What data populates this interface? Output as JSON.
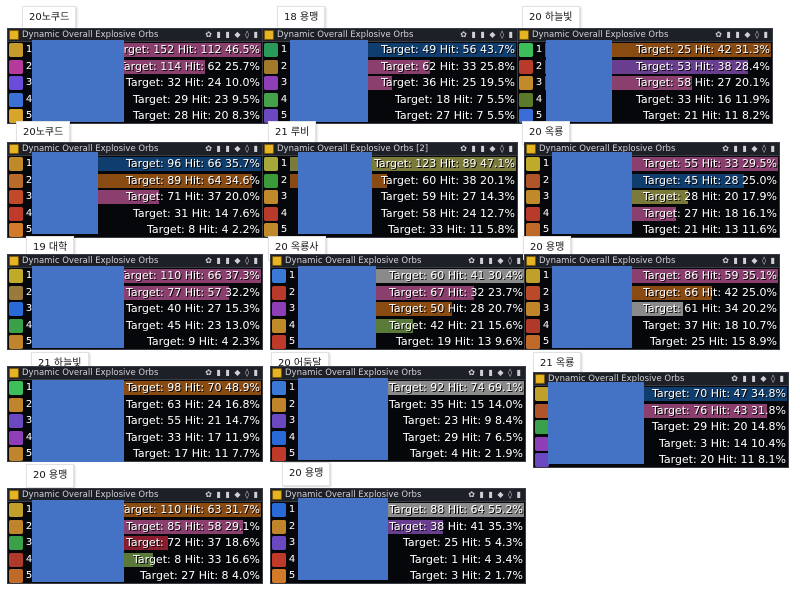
{
  "panels": [
    {
      "label": "20노쿠드",
      "title": "Dynamic Overall Explosive Orbs",
      "tools": "✿ ▮ ▮ ◆ ◊ ▮",
      "rows": [
        {
          "rank": "1",
          "text": "Target: 152 Hit: 112 46.5%",
          "color": "#8a3f6e",
          "fill": 1.0,
          "icon": "#c59a2a"
        },
        {
          "rank": "2",
          "text": "Target: 114 Hit: 62 25.7%",
          "color": "#8a3f6e",
          "fill": 0.75,
          "icon": "#b63a9b"
        },
        {
          "rank": "3",
          "text": "Target: 32 Hit: 24 10.0%",
          "color": "#0a0a10",
          "fill": 0.0,
          "icon": "#6b4bd9"
        },
        {
          "rank": "4",
          "text": "Target: 29 Hit: 23 9.5%",
          "color": "#0a0a10",
          "fill": 0.0,
          "icon": "#3b70d6"
        },
        {
          "rank": "5",
          "text": "Target: 28 Hit: 20 8.3%",
          "color": "#0a0a10",
          "fill": 0.0,
          "icon": "#d8a52a"
        }
      ]
    },
    {
      "label": "18 용맹",
      "title": "Dynamic Overall Explosive Orbs",
      "tools": "✿ ▮ ▮ ◆ ◊ ▮",
      "rows": [
        {
          "rank": "1",
          "text": "Target: 49 Hit: 56 43.7%",
          "color": "#0f3d6e",
          "fill": 1.0,
          "icon": "#2a9a5a"
        },
        {
          "rank": "2",
          "text": "Target: 62 Hit: 33 25.8%",
          "color": "#8a3f6e",
          "fill": 0.62,
          "icon": "#a27a2a"
        },
        {
          "rank": "3",
          "text": "Target: 36 Hit: 25 19.5%",
          "color": "#8a3f6e",
          "fill": 0.45,
          "icon": "#8e3fb8"
        },
        {
          "rank": "4",
          "text": "Target: 18 Hit: 7 5.5%",
          "color": "#0a0a10",
          "fill": 0.0,
          "icon": "#45a04a"
        },
        {
          "rank": "5",
          "text": "Target: 27 Hit: 7 5.5%",
          "color": "#0a0a10",
          "fill": 0.0,
          "icon": "#6a48c0"
        }
      ]
    },
    {
      "label": "20 하늘빛",
      "title": "Dynamic Overall Explosive Orbs",
      "tools": "✿ ▮ ▮ ◆ ◊ ▮",
      "rows": [
        {
          "rank": "1",
          "text": "Target: 25 Hit: 42 31.3%",
          "color": "#8a4b12",
          "fill": 1.0,
          "icon": "#3cbf5a"
        },
        {
          "rank": "2",
          "text": "Target: 53 Hit: 38 28.4%",
          "color": "#6a3e8e",
          "fill": 0.9,
          "icon": "#b83a2a"
        },
        {
          "rank": "3",
          "text": "Target: 58 Hit: 27 20.1%",
          "color": "#8a3f6e",
          "fill": 0.65,
          "icon": "#c28a2a"
        },
        {
          "rank": "4",
          "text": "Target: 33 Hit: 16 11.9%",
          "color": "#0a0a10",
          "fill": 0.0,
          "icon": "#5a7a2a"
        },
        {
          "rank": "5",
          "text": "Target: 21 Hit: 11 8.2%",
          "color": "#0a0a10",
          "fill": 0.0,
          "icon": "#3b6bd6"
        }
      ]
    },
    {
      "label": "20노쿠드",
      "title": "Dynamic Overall Explosive Orbs",
      "tools": "✿ ▮ ▮ ◆ ◊ ▮",
      "rows": [
        {
          "rank": "1",
          "text": "Target: 96 Hit: 66 35.7%",
          "color": "#0f3d6e",
          "fill": 1.0,
          "icon": "#c08a2a"
        },
        {
          "rank": "2",
          "text": "Target: 89 Hit: 64 34.6%",
          "color": "#8a4b12",
          "fill": 0.96,
          "icon": "#b86a2a"
        },
        {
          "rank": "3",
          "text": "Target: 71 Hit: 37 20.0%",
          "color": "#8a3f6e",
          "fill": 0.55,
          "icon": "#c04a2a"
        },
        {
          "rank": "4",
          "text": "Target: 31 Hit: 14 7.6%",
          "color": "#0a0a10",
          "fill": 0.0,
          "icon": "#c03a2a"
        },
        {
          "rank": "5",
          "text": "Target: 8 Hit: 4 2.2%",
          "color": "#0a0a10",
          "fill": 0.0,
          "icon": "#d07a2a"
        }
      ]
    },
    {
      "label": "21 루비",
      "title": "Dynamic Overall Explosive Orbs [2]",
      "tools": "✿ ▮ ▮ ◆ ◊ ▮",
      "rows": [
        {
          "rank": "1",
          "text": "Target: 123 Hit: 89 47.1%",
          "color": "#7a7a3a",
          "fill": 1.0,
          "icon": "#a8a83a"
        },
        {
          "rank": "2",
          "text": "Target: 60 Hit: 38 20.1%",
          "color": "#8a4b12",
          "fill": 0.43,
          "icon": "#3a9a3a"
        },
        {
          "rank": "3",
          "text": "Target: 59 Hit: 27 14.3%",
          "color": "#0a0a10",
          "fill": 0.0,
          "icon": "#c08a2a"
        },
        {
          "rank": "4",
          "text": "Target: 58 Hit: 24 12.7%",
          "color": "#0a0a10",
          "fill": 0.0,
          "icon": "#b83a2a"
        },
        {
          "rank": "5",
          "text": "Target: 33 Hit: 11 5.8%",
          "color": "#0a0a10",
          "fill": 0.0,
          "icon": "#c08a2a"
        }
      ]
    },
    {
      "label": "20 옥룡",
      "title": "Dynamic Overall Explosive Orbs",
      "tools": "✿ ▮ ▮ ◆ ◊ ▮",
      "rows": [
        {
          "rank": "1",
          "text": "Target: 55 Hit: 33 29.5%",
          "color": "#8a3f6e",
          "fill": 1.0,
          "icon": "#c0aa2a"
        },
        {
          "rank": "2",
          "text": "Target: 45 Hit: 28 25.0%",
          "color": "#0f3d6e",
          "fill": 0.85,
          "icon": "#b0542a"
        },
        {
          "rank": "3",
          "text": "Target: 28 Hit: 20 17.9%",
          "color": "#7a7a3a",
          "fill": 0.6,
          "icon": "#c08a2a"
        },
        {
          "rank": "4",
          "text": "Target: 27 Hit: 18 16.1%",
          "color": "#8a3f6e",
          "fill": 0.55,
          "icon": "#b83a2a"
        },
        {
          "rank": "5",
          "text": "Target: 21 Hit: 13 11.6%",
          "color": "#0a0a10",
          "fill": 0.0,
          "icon": "#c06a2a"
        }
      ]
    },
    {
      "label": "19 대학",
      "title": "Dynamic Overall Explosive Orbs",
      "tools": "✿ ▮ ▮ ◆ ◊ ▮",
      "rows": [
        {
          "rank": "1",
          "text": "Target: 110 Hit: 66 37.3%",
          "color": "#8a3f6e",
          "fill": 1.0,
          "icon": "#c0aa2a"
        },
        {
          "rank": "2",
          "text": "Target: 77 Hit: 57 32.2%",
          "color": "#8a3f6e",
          "fill": 0.86,
          "icon": "#9a7a3a"
        },
        {
          "rank": "3",
          "text": "Target: 40 Hit: 27 15.3%",
          "color": "#0a0a10",
          "fill": 0.0,
          "icon": "#2a6ad6"
        },
        {
          "rank": "4",
          "text": "Target: 45 Hit: 23 13.0%",
          "color": "#0a0a10",
          "fill": 0.0,
          "icon": "#3aa04a"
        },
        {
          "rank": "5",
          "text": "Target: 9 Hit: 4 2.3%",
          "color": "#0a0a10",
          "fill": 0.0,
          "icon": "#c0842a"
        }
      ]
    },
    {
      "label": "20 옥룡사",
      "title": "Dynamic Overall Explosive Orbs",
      "tools": "✿ ▮ ▮ ◆ ◊ ▮",
      "rows": [
        {
          "rank": "1",
          "text": "Target: 60 Hit: 41 30.4%",
          "color": "#8a8a8a",
          "fill": 1.0,
          "icon": "#3a7ad6"
        },
        {
          "rank": "2",
          "text": "Target: 67 Hit: 32 23.7%",
          "color": "#8a3f6e",
          "fill": 0.78,
          "icon": "#b83a2a"
        },
        {
          "rank": "3",
          "text": "Target: 50 Hit: 28 20.7%",
          "color": "#8a4b12",
          "fill": 0.68,
          "icon": "#8e3fb8"
        },
        {
          "rank": "4",
          "text": "Target: 42 Hit: 21 15.6%",
          "color": "#5a7a3a",
          "fill": 0.51,
          "icon": "#c08a2a"
        },
        {
          "rank": "5",
          "text": "Target: 19 Hit: 13 9.6%",
          "color": "#0a0a10",
          "fill": 0.0,
          "icon": "#c03a2a"
        }
      ]
    },
    {
      "label": "20 용맹",
      "title": "Dynamic Overall Explosive Orbs",
      "tools": "✿ ▮ ▮ ◆ ◊ ▮",
      "rows": [
        {
          "rank": "1",
          "text": "Target: 86 Hit: 59 35.1%",
          "color": "#8a3f6e",
          "fill": 1.0,
          "icon": "#c0a02a"
        },
        {
          "rank": "2",
          "text": "Target: 66 Hit: 42 25.0%",
          "color": "#8a4b12",
          "fill": 0.71,
          "icon": "#b84a2a"
        },
        {
          "rank": "3",
          "text": "Target: 61 Hit: 34 20.2%",
          "color": "#8a8a8a",
          "fill": 0.58,
          "icon": "#c0842a"
        },
        {
          "rank": "4",
          "text": "Target: 37 Hit: 18 10.7%",
          "color": "#0a0a10",
          "fill": 0.0,
          "icon": "#b03a2a"
        },
        {
          "rank": "5",
          "text": "Target: 25 Hit: 15 8.9%",
          "color": "#0a0a10",
          "fill": 0.0,
          "icon": "#c06a2a"
        }
      ]
    },
    {
      "label": "21 하늘빛",
      "title": "Dynamic Overall Explosive Orbs",
      "tools": "✿ ▮ ▮ ◆ ◊ ▮",
      "rows": [
        {
          "rank": "1",
          "text": "Target: 98 Hit: 70 48.9%",
          "color": "#8a4b12",
          "fill": 1.0,
          "icon": "#3cbf5a"
        },
        {
          "rank": "2",
          "text": "Target: 63 Hit: 24 16.8%",
          "color": "#0a0a10",
          "fill": 0.0,
          "icon": "#c0842a"
        },
        {
          "rank": "3",
          "text": "Target: 55 Hit: 21 14.7%",
          "color": "#0a0a10",
          "fill": 0.0,
          "icon": "#6a48c0"
        },
        {
          "rank": "4",
          "text": "Target: 33 Hit: 17 11.9%",
          "color": "#0a0a10",
          "fill": 0.0,
          "icon": "#8e3fb8"
        },
        {
          "rank": "5",
          "text": "Target: 17 Hit: 11 7.7%",
          "color": "#0a0a10",
          "fill": 0.0,
          "icon": "#c0842a"
        }
      ]
    },
    {
      "label": "20 어둠달",
      "title": "Dynamic Overall Explosive Orbs",
      "tools": "✿ ▮ ▮ ◆ ◊ ▮",
      "rows": [
        {
          "rank": "1",
          "text": "Target: 92 Hit: 74 69.1%",
          "color": "#8a8a8a",
          "fill": 1.0,
          "icon": "#3a7ad6"
        },
        {
          "rank": "2",
          "text": "Target: 35 Hit: 15 14.0%",
          "color": "#0a0a10",
          "fill": 0.0,
          "icon": "#c0842a"
        },
        {
          "rank": "3",
          "text": "Target: 23 Hit: 9 8.4%",
          "color": "#0a0a10",
          "fill": 0.0,
          "icon": "#6a48c0"
        },
        {
          "rank": "4",
          "text": "Target: 29 Hit: 7 6.5%",
          "color": "#0a0a10",
          "fill": 0.0,
          "icon": "#2a6ad6"
        },
        {
          "rank": "5",
          "text": "Target: 4 Hit: 2 1.9%",
          "color": "#0a0a10",
          "fill": 0.0,
          "icon": "#c03a2a"
        }
      ]
    },
    {
      "label": "21 옥룡",
      "title": "Dynamic Overall Explosive Orbs",
      "tools": "✿ ▮ ▮ ◆ ◊ ▮",
      "rows": [
        {
          "rank": "1",
          "text": "Target: 70 Hit: 47 34.8%",
          "color": "#0f3d6e",
          "fill": 1.0,
          "icon": "#c0a02a"
        },
        {
          "rank": "2",
          "text": "Target: 76 Hit: 43 31.8%",
          "color": "#8a3f6e",
          "fill": 0.91,
          "icon": "#b0542a"
        },
        {
          "rank": "3",
          "text": "Target: 29 Hit: 20 14.8%",
          "color": "#0a0a10",
          "fill": 0.0,
          "icon": "#3aa04a"
        },
        {
          "rank": "4",
          "text": "Target: 3 Hit: 14 10.4%",
          "color": "#0a0a10",
          "fill": 0.0,
          "icon": "#8e3fb8"
        },
        {
          "rank": "5",
          "text": "Target: 20 Hit: 11 8.1%",
          "color": "#0a0a10",
          "fill": 0.0,
          "icon": "#6a48c0"
        }
      ]
    },
    {
      "label": "20 용맹",
      "title": "Dynamic Overall Explosive Orbs",
      "tools": "✿ ▮ ▮ ◆ ◊ ▮",
      "rows": [
        {
          "rank": "1",
          "text": "Target: 110 Hit: 63 31.7%",
          "color": "#8a4b12",
          "fill": 1.0,
          "icon": "#c0a02a"
        },
        {
          "rank": "2",
          "text": "Target: 85 Hit: 58 29.1%",
          "color": "#8a3f6e",
          "fill": 0.92,
          "icon": "#c0842a"
        },
        {
          "rank": "3",
          "text": "Target: 72 Hit: 37 18.6%",
          "color": "#8a1e2e",
          "fill": 0.59,
          "icon": "#3aa04a"
        },
        {
          "rank": "4",
          "text": "Target: 8 Hit: 33 16.6%",
          "color": "#5a7a3a",
          "fill": 0.52,
          "icon": "#b03a2a"
        },
        {
          "rank": "5",
          "text": "Target: 27 Hit: 8 4.0%",
          "color": "#0a0a10",
          "fill": 0.0,
          "icon": "#c06a2a"
        }
      ]
    },
    {
      "label": "20 용맹",
      "title": "Dynamic Overall Explosive Orbs",
      "tools": "✿ ▮ ▮ ◆ ◊ ▮",
      "rows": [
        {
          "rank": "1",
          "text": "Target: 88 Hit: 64 55.2%",
          "color": "#8a8a8a",
          "fill": 1.0,
          "icon": "#2a6ad6"
        },
        {
          "rank": "2",
          "text": "Target: 38 Hit: 41 35.3%",
          "color": "#6a3e8e",
          "fill": 0.64,
          "icon": "#c0842a"
        },
        {
          "rank": "3",
          "text": "Target: 25 Hit: 5 4.3%",
          "color": "#0a0a10",
          "fill": 0.0,
          "icon": "#6a48c0"
        },
        {
          "rank": "4",
          "text": "Target: 1 Hit: 4 3.4%",
          "color": "#0a0a10",
          "fill": 0.0,
          "icon": "#c03a2a"
        },
        {
          "rank": "5",
          "text": "Target: 3 Hit: 2 1.7%",
          "color": "#0a0a10",
          "fill": 0.0,
          "icon": "#d07a2a"
        }
      ]
    }
  ]
}
